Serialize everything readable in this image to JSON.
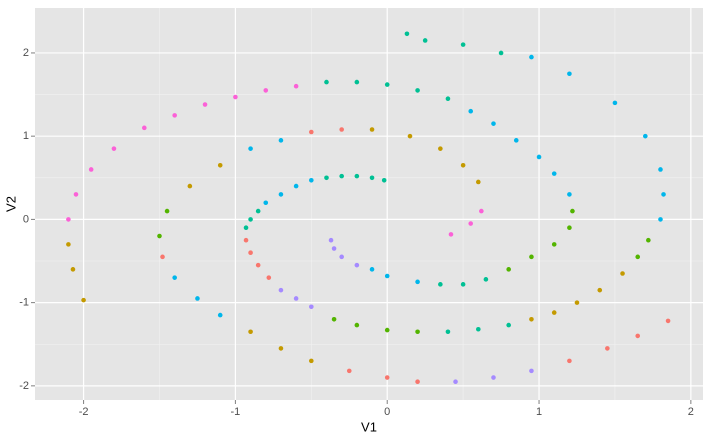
{
  "chart_data": {
    "type": "scatter",
    "x_label": "V1",
    "y_label": "V2",
    "xlim": [
      -2.32,
      2.08
    ],
    "ylim": [
      -2.17,
      2.54
    ],
    "xticks": [
      -2,
      -1,
      0,
      1,
      2
    ],
    "yticks": [
      -2,
      -1,
      0,
      1,
      2
    ],
    "x_minor_grid": [
      -1.5,
      -0.5,
      0.5,
      1.5
    ],
    "y_minor_grid": [
      -1.5,
      -0.5,
      0.5,
      1.5
    ],
    "grid": true,
    "series": [
      {
        "color": "#F8766D",
        "x": [
          -0.93,
          -0.9,
          -0.85,
          -0.78,
          -0.3,
          -0.5,
          -0.25,
          0,
          0.2,
          1.2,
          1.45,
          1.65,
          1.85,
          -1.48
        ],
        "y": [
          -0.25,
          -0.4,
          -0.55,
          -0.7,
          1.08,
          1.05,
          -1.82,
          -1.9,
          -1.95,
          -1.7,
          -1.55,
          -1.4,
          -1.22,
          -0.45
        ]
      },
      {
        "color": "#C49A00",
        "x": [
          0.6,
          0.5,
          0.35,
          0.15,
          -0.1,
          -0.9,
          -0.7,
          -0.5,
          -2.1,
          -2.07,
          -2.0,
          0.95,
          1.1,
          1.25,
          1.4,
          1.55,
          -1.1,
          -1.3
        ],
        "y": [
          0.45,
          0.65,
          0.85,
          1.0,
          1.08,
          -1.35,
          -1.55,
          -1.7,
          -0.3,
          -0.6,
          -0.97,
          -1.2,
          -1.12,
          -1.0,
          -0.85,
          -0.65,
          0.65,
          0.4
        ]
      },
      {
        "color": "#53B400",
        "x": [
          0.8,
          0.95,
          1.1,
          1.2,
          1.22,
          -0.35,
          -0.2,
          0,
          0.2,
          1.65,
          1.72,
          -1.45,
          -1.5
        ],
        "y": [
          -0.6,
          -0.45,
          -0.3,
          -0.1,
          0.1,
          -1.2,
          -1.27,
          -1.33,
          -1.35,
          -0.45,
          -0.25,
          0.1,
          -0.2
        ]
      },
      {
        "color": "#00C094",
        "x": [
          -0.02,
          -0.1,
          -0.2,
          -0.3,
          -0.4,
          -0.85,
          -0.9,
          -0.93,
          0.35,
          0.5,
          0.65,
          0.4,
          0.2,
          0,
          -0.2,
          -0.4,
          0.75,
          0.5,
          0.25,
          0.13,
          0.4,
          0.6,
          0.8
        ],
        "y": [
          0.47,
          0.5,
          0.52,
          0.52,
          0.5,
          0.1,
          0,
          -0.1,
          -0.78,
          -0.78,
          -0.72,
          1.45,
          1.55,
          1.62,
          1.65,
          1.65,
          2.0,
          2.1,
          2.15,
          2.23,
          -1.35,
          -1.32,
          -1.27
        ]
      },
      {
        "color": "#00B6EB",
        "x": [
          -0.5,
          -0.6,
          -0.7,
          -0.8,
          -0.1,
          0,
          0.2,
          1.2,
          1.1,
          1.0,
          0.85,
          0.7,
          0.55,
          1.8,
          1.82,
          1.8,
          1.7,
          1.5,
          1.2,
          0.95,
          -0.7,
          -0.9,
          -1.4,
          -1.25,
          -1.1
        ],
        "y": [
          0.47,
          0.4,
          0.3,
          0.2,
          -0.6,
          -0.68,
          -0.75,
          0.3,
          0.55,
          0.75,
          0.95,
          1.15,
          1.3,
          0,
          0.3,
          0.6,
          1.0,
          1.4,
          1.75,
          1.95,
          0.95,
          0.85,
          -0.7,
          -0.95,
          -1.15
        ]
      },
      {
        "color": "#A58AFF",
        "x": [
          -0.37,
          -0.35,
          -0.3,
          -0.2,
          -0.7,
          -0.6,
          -0.5,
          0.45,
          0.7,
          0.95
        ],
        "y": [
          -0.25,
          -0.35,
          -0.45,
          -0.55,
          -0.85,
          -0.95,
          -1.05,
          -1.95,
          -1.9,
          -1.82
        ]
      },
      {
        "color": "#FB61D7",
        "x": [
          0.42,
          0.55,
          0.62,
          -0.6,
          -0.8,
          -1.0,
          -1.2,
          -1.4,
          -1.6,
          -1.8,
          -1.95,
          -2.05,
          -2.1
        ],
        "y": [
          -0.18,
          -0.05,
          0.1,
          1.6,
          1.55,
          1.47,
          1.38,
          1.25,
          1.1,
          0.85,
          0.6,
          0.3,
          0
        ]
      }
    ]
  }
}
